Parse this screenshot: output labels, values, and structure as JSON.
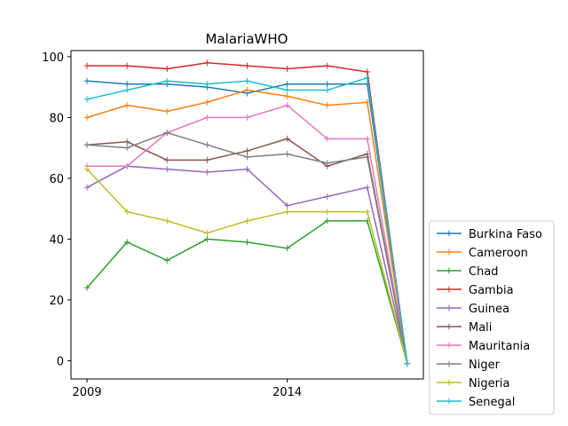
{
  "chart_data": {
    "type": "line",
    "title": "MalariaWHO",
    "xlabel": "",
    "ylabel": "",
    "x": [
      2009,
      2010,
      2011,
      2012,
      2013,
      2014,
      2015,
      2016,
      2017
    ],
    "x_ticks": [
      "2009",
      "2014"
    ],
    "y_ticks": [
      0,
      20,
      40,
      60,
      80,
      100
    ],
    "xlim": [
      2008.6,
      2017.4
    ],
    "ylim": [
      -6,
      102
    ],
    "grid": false,
    "legend_position": "lower-right, outside plot",
    "series": [
      {
        "name": "Burkina Faso",
        "color": "#1f77b4",
        "values": [
          92,
          91,
          91,
          90,
          88,
          91,
          91,
          91,
          -1
        ]
      },
      {
        "name": "Cameroon",
        "color": "#ff7f0e",
        "values": [
          80,
          84,
          82,
          85,
          89,
          87,
          84,
          85,
          -1
        ]
      },
      {
        "name": "Chad",
        "color": "#2ca02c",
        "values": [
          24,
          39,
          33,
          40,
          39,
          37,
          46,
          46,
          -1
        ]
      },
      {
        "name": "Gambia",
        "color": "#d62728",
        "values": [
          97,
          97,
          96,
          98,
          97,
          96,
          97,
          95,
          -1
        ]
      },
      {
        "name": "Guinea",
        "color": "#9467bd",
        "values": [
          57,
          64,
          63,
          62,
          63,
          51,
          54,
          57,
          -1
        ]
      },
      {
        "name": "Mali",
        "color": "#8c564b",
        "values": [
          71,
          72,
          66,
          66,
          69,
          73,
          64,
          68,
          -1
        ]
      },
      {
        "name": "Mauritania",
        "color": "#e377c2",
        "values": [
          64,
          64,
          75,
          80,
          80,
          84,
          73,
          73,
          -1
        ]
      },
      {
        "name": "Niger",
        "color": "#7f7f7f",
        "values": [
          71,
          70,
          75,
          71,
          67,
          68,
          65,
          67,
          -1
        ]
      },
      {
        "name": "Nigeria",
        "color": "#bcbd22",
        "values": [
          63,
          49,
          46,
          42,
          46,
          49,
          49,
          49,
          -1
        ]
      },
      {
        "name": "Senegal",
        "color": "#17becf",
        "values": [
          86,
          89,
          92,
          91,
          92,
          89,
          89,
          93,
          -1
        ]
      }
    ]
  }
}
